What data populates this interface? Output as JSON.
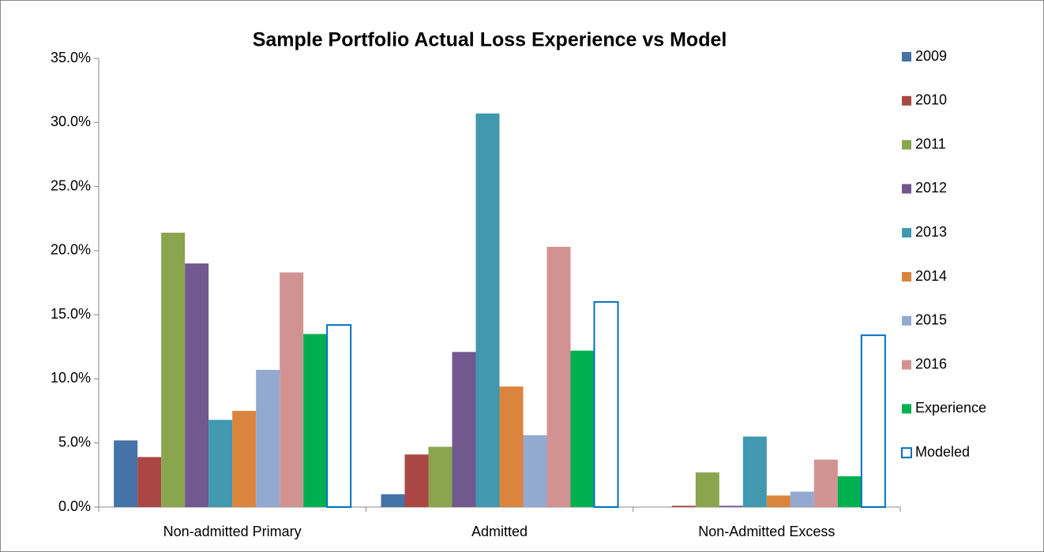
{
  "chart_data": {
    "type": "bar",
    "title": "Sample Portfolio Actual Loss Experience vs Model",
    "categories": [
      "Non-admitted Primary",
      "Admitted",
      "Non-Admitted Excess"
    ],
    "series": [
      {
        "name": "2009",
        "color": "#4572a7",
        "values": [
          5.2,
          1.0,
          0
        ]
      },
      {
        "name": "2010",
        "color": "#aa4643",
        "values": [
          3.9,
          4.1,
          0.1
        ]
      },
      {
        "name": "2011",
        "color": "#89a54e",
        "values": [
          21.4,
          4.7,
          2.7
        ]
      },
      {
        "name": "2012",
        "color": "#71588f",
        "values": [
          19.0,
          12.1,
          0.1
        ]
      },
      {
        "name": "2013",
        "color": "#4198af",
        "values": [
          6.8,
          30.7,
          5.5
        ]
      },
      {
        "name": "2014",
        "color": "#db843d",
        "values": [
          7.5,
          9.4,
          0.9
        ]
      },
      {
        "name": "2015",
        "color": "#93a9cf",
        "values": [
          10.7,
          5.6,
          1.2
        ]
      },
      {
        "name": "2016",
        "color": "#d19392",
        "values": [
          18.3,
          20.3,
          3.7
        ]
      },
      {
        "name": "Experience",
        "color": "#00b050",
        "values": [
          13.5,
          12.2,
          2.4
        ]
      },
      {
        "name": "Modeled",
        "color": "#0070c0",
        "hollow": true,
        "values": [
          14.2,
          16.0,
          13.4
        ]
      }
    ],
    "ylim": [
      0,
      35
    ],
    "yticks": [
      {
        "value": 0,
        "label": "0.0%"
      },
      {
        "value": 5,
        "label": "5.0%"
      },
      {
        "value": 10,
        "label": "10.0%"
      },
      {
        "value": 15,
        "label": "15.0%"
      },
      {
        "value": 20,
        "label": "20.0%"
      },
      {
        "value": 25,
        "label": "25.0%"
      },
      {
        "value": 30,
        "label": "30.0%"
      },
      {
        "value": 35,
        "label": "35.0%"
      }
    ],
    "grid": false,
    "legend": "right"
  }
}
